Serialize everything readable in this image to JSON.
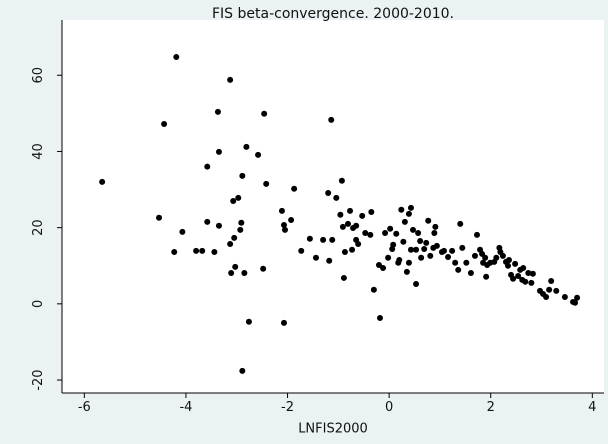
{
  "chart_data": {
    "type": "scatter",
    "title": "FIS beta-convergence. 2000-2010.",
    "x_label": "LNFIS2000",
    "color": "#000000",
    "xlim": [
      -6.44,
      4.23
    ],
    "xticks": [
      -6,
      -4,
      -2,
      0,
      2,
      4
    ],
    "ylim": [
      -23.4,
      74.5
    ],
    "yticks": [
      -20,
      0,
      20,
      40,
      60
    ],
    "x": [
      -5.65,
      -4.53,
      -4.43,
      -4.19,
      -4.23,
      -4.07,
      -3.8,
      -3.68,
      -3.58,
      -3.58,
      -3.44,
      -3.37,
      -3.35,
      -3.35,
      -3.13,
      -3.13,
      -3.11,
      -3.07,
      -3.05,
      -3.03,
      -2.97,
      -2.93,
      -2.91,
      -2.89,
      -2.89,
      -2.85,
      -2.81,
      -2.76,
      -2.58,
      -2.48,
      -2.46,
      -2.42,
      -2.11,
      -2.07,
      -2.05,
      -2.07,
      -1.93,
      -1.87,
      -1.73,
      -1.56,
      -1.44,
      -1.3,
      -1.2,
      -1.18,
      -1.14,
      -1.12,
      -1.04,
      -0.96,
      -0.93,
      -0.91,
      -0.89,
      -0.87,
      -0.81,
      -0.77,
      -0.73,
      -0.71,
      -0.65,
      -0.65,
      -0.61,
      -0.53,
      -0.47,
      -0.37,
      -0.35,
      -0.3,
      -0.2,
      -0.18,
      -0.12,
      -0.08,
      -0.02,
      0.02,
      0.06,
      0.08,
      0.14,
      0.18,
      0.2,
      0.24,
      0.28,
      0.31,
      0.35,
      0.39,
      0.39,
      0.43,
      0.43,
      0.47,
      0.53,
      0.53,
      0.57,
      0.61,
      0.63,
      0.69,
      0.73,
      0.77,
      0.81,
      0.87,
      0.89,
      0.91,
      0.94,
      1.04,
      1.08,
      1.16,
      1.24,
      1.3,
      1.36,
      1.4,
      1.44,
      1.52,
      1.61,
      1.69,
      1.73,
      1.79,
      1.83,
      1.85,
      1.89,
      1.91,
      1.93,
      1.99,
      2.07,
      2.11,
      2.17,
      2.19,
      2.24,
      2.3,
      2.34,
      2.36,
      2.4,
      2.44,
      2.48,
      2.54,
      2.58,
      2.62,
      2.64,
      2.68,
      2.74,
      2.8,
      2.83,
      2.97,
      3.03,
      3.09,
      3.15,
      3.19,
      3.29,
      3.46,
      3.62,
      3.7,
      3.66
    ],
    "y": [
      32.0,
      22.6,
      47.2,
      64.8,
      13.6,
      18.9,
      13.9,
      13.9,
      36.0,
      21.5,
      13.6,
      50.4,
      39.9,
      20.5,
      58.8,
      15.7,
      8.1,
      27.0,
      17.3,
      9.7,
      27.8,
      19.4,
      21.3,
      33.6,
      -17.6,
      8.1,
      41.2,
      -4.7,
      39.1,
      9.2,
      49.9,
      31.5,
      24.4,
      20.7,
      19.4,
      -5.0,
      22.0,
      30.2,
      13.9,
      17.1,
      12.1,
      16.8,
      29.1,
      11.3,
      48.3,
      16.8,
      27.8,
      23.4,
      32.3,
      20.2,
      6.8,
      13.6,
      21.0,
      24.4,
      14.2,
      19.9,
      20.5,
      16.8,
      15.7,
      23.1,
      18.6,
      18.1,
      24.1,
      3.7,
      10.2,
      -3.7,
      9.4,
      18.6,
      12.1,
      19.7,
      14.4,
      15.5,
      18.4,
      10.8,
      11.5,
      24.7,
      16.3,
      21.5,
      8.4,
      10.8,
      23.6,
      14.2,
      25.2,
      19.4,
      14.2,
      5.2,
      18.6,
      16.5,
      12.1,
      14.4,
      16.0,
      21.8,
      12.6,
      14.7,
      18.6,
      20.2,
      15.2,
      13.6,
      13.9,
      12.3,
      13.9,
      10.8,
      8.9,
      21.0,
      14.7,
      10.8,
      8.1,
      12.6,
      18.1,
      14.2,
      13.1,
      10.8,
      12.1,
      7.1,
      10.2,
      10.8,
      11.0,
      12.1,
      14.7,
      13.6,
      12.6,
      11.0,
      10.0,
      11.5,
      7.6,
      6.6,
      10.5,
      7.3,
      8.9,
      6.3,
      9.4,
      5.8,
      8.1,
      5.5,
      7.9,
      3.4,
      2.6,
      1.8,
      3.7,
      6.0,
      3.4,
      1.8,
      0.5,
      1.6,
      0.3
    ]
  }
}
